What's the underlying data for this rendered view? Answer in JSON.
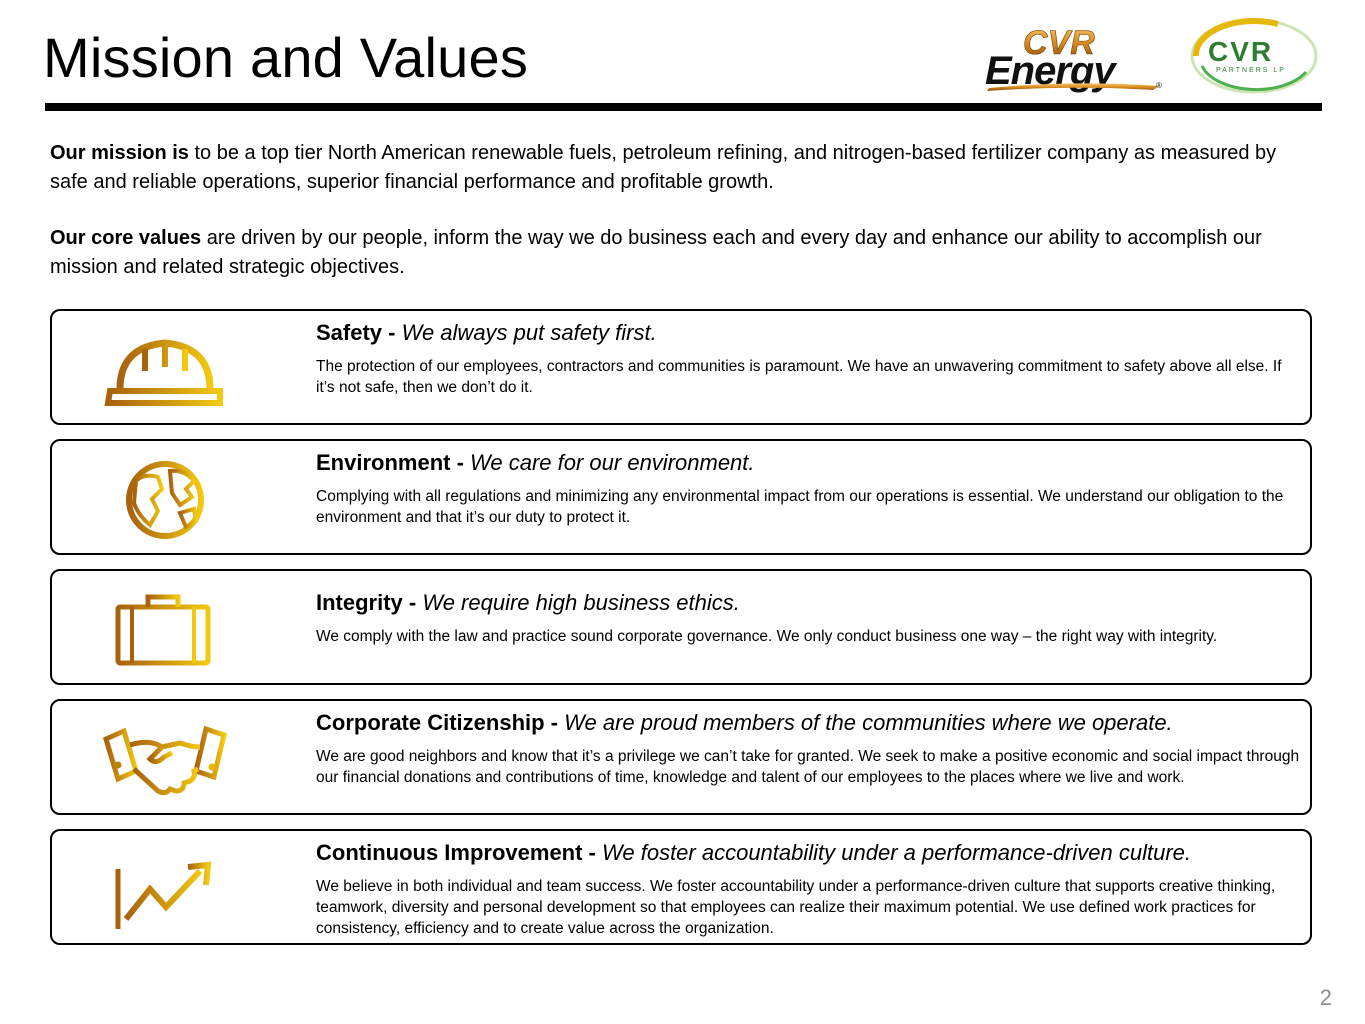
{
  "title": "Mission and Values",
  "logos": {
    "cvr_energy": {
      "line1": "CVR",
      "line2": "Energy",
      "mark": "®"
    },
    "cvr_partners": {
      "line1": "CVR",
      "line2": "PARTNERS LP"
    }
  },
  "mission": {
    "lead": "Our mission is",
    "text": " to be a top tier North American renewable fuels, petroleum refining, and nitrogen-based fertilizer company as measured by safe and reliable operations, superior financial performance and profitable growth."
  },
  "core_values": {
    "lead": "Our core values",
    "text": " are driven by our people, inform the way we do business each and every day and enhance our ability to accomplish our mission and related strategic objectives."
  },
  "values": [
    {
      "name": "Safety - ",
      "tagline": "We always put safety first.",
      "description": "The protection of our employees, contractors and communities is paramount. We have an unwavering commitment to safety above all else. If it’s not safe, then we don’t do it.",
      "icon": "hard-hat-icon"
    },
    {
      "name": "Environment - ",
      "tagline": "We care for our environment.",
      "description": "Complying with all regulations and minimizing any environmental impact from our operations is essential. We understand our obligation to the environment and that it’s our duty to protect it.",
      "icon": "globe-icon"
    },
    {
      "name": "Integrity - ",
      "tagline": "We require high business ethics.",
      "description": "We comply with the law and practice sound corporate governance. We only conduct business one way – the right way with integrity.",
      "icon": "briefcase-icon"
    },
    {
      "name": "Corporate Citizenship - ",
      "tagline": "We are proud members of the communities where we operate.",
      "description": "We are good neighbors and know that it’s a privilege we can’t take for granted. We seek to make a positive economic and social impact through our financial donations and contributions of time, knowledge and talent of our employees to the places where we live and work.",
      "icon": "handshake-icon"
    },
    {
      "name": "Continuous Improvement - ",
      "tagline": "We foster accountability under a performance-driven culture.",
      "description": "We believe in both individual and team success. We foster accountability under a performance-driven culture that supports creative thinking, teamwork, diversity and personal development so that employees can realize their maximum potential. We use defined work practices for consistency, efficiency and to create value across the organization.",
      "icon": "growth-chart-icon"
    }
  ],
  "page_number": "2",
  "colors": {
    "accent_gold": "#E5B80B",
    "accent_bronze": "#B8860B",
    "partners_green": "#2E7D32"
  }
}
